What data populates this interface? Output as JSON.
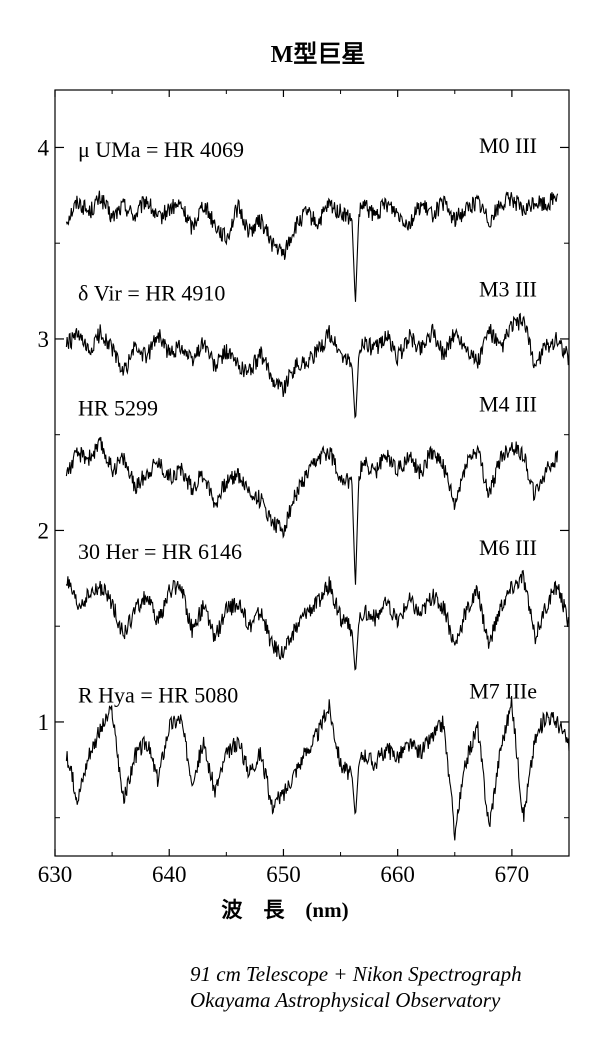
{
  "chart_data": {
    "type": "line",
    "title": "M型巨星",
    "xlabel": "波　長　(nm)",
    "ylabel": "",
    "xlim": [
      630,
      675
    ],
    "ylim": [
      0.3,
      4.3
    ],
    "xticks": [
      630,
      640,
      650,
      660,
      670
    ],
    "yticks": [
      1,
      2,
      3,
      4
    ],
    "grid": false,
    "series": [
      {
        "name": "μ UMa = HR 4069",
        "spectral_type": "M0 III",
        "baseline": 3.7,
        "x": [
          631.0,
          632.0,
          633.0,
          634.0,
          635.0,
          636.0,
          637.0,
          638.0,
          639.0,
          640.0,
          641.0,
          642.0,
          643.0,
          644.0,
          645.0,
          646.0,
          647.0,
          648.0,
          649.0,
          650.0,
          651.0,
          652.0,
          653.0,
          654.0,
          655.0,
          656.0,
          656.3,
          656.6,
          657.0,
          658.0,
          659.0,
          660.0,
          661.0,
          662.0,
          663.0,
          664.0,
          665.0,
          666.0,
          667.0,
          668.0,
          669.0,
          670.0,
          671.0,
          672.0,
          673.0,
          674.0
        ],
        "y": [
          3.62,
          3.72,
          3.66,
          3.74,
          3.63,
          3.7,
          3.64,
          3.73,
          3.62,
          3.68,
          3.7,
          3.58,
          3.71,
          3.6,
          3.52,
          3.69,
          3.56,
          3.62,
          3.5,
          3.44,
          3.58,
          3.66,
          3.6,
          3.7,
          3.66,
          3.62,
          3.18,
          3.65,
          3.7,
          3.64,
          3.71,
          3.66,
          3.6,
          3.7,
          3.65,
          3.71,
          3.62,
          3.68,
          3.72,
          3.62,
          3.7,
          3.74,
          3.66,
          3.72,
          3.7,
          3.76
        ]
      },
      {
        "name": "δ Vir = HR 4910",
        "spectral_type": "M3 III",
        "baseline": 2.95,
        "x": [
          631.0,
          632.0,
          633.0,
          634.0,
          635.0,
          636.0,
          637.0,
          638.0,
          639.0,
          640.0,
          641.0,
          642.0,
          643.0,
          644.0,
          645.0,
          646.0,
          647.0,
          648.0,
          649.0,
          650.0,
          651.0,
          652.0,
          653.0,
          654.0,
          655.0,
          656.0,
          656.3,
          656.6,
          657.0,
          658.0,
          659.0,
          660.0,
          661.0,
          662.0,
          663.0,
          664.0,
          665.0,
          666.0,
          667.0,
          668.0,
          669.0,
          670.0,
          671.0,
          672.0,
          673.0,
          674.0,
          675.0
        ],
        "y": [
          2.97,
          3.02,
          2.92,
          3.04,
          2.95,
          2.82,
          2.96,
          2.9,
          3.03,
          2.92,
          2.97,
          2.88,
          2.99,
          2.85,
          2.94,
          2.86,
          2.83,
          2.92,
          2.8,
          2.74,
          2.86,
          2.88,
          2.93,
          3.03,
          2.92,
          2.86,
          2.56,
          2.92,
          2.99,
          2.94,
          3.02,
          2.9,
          3.01,
          2.95,
          3.04,
          2.92,
          3.03,
          2.96,
          2.87,
          3.05,
          2.94,
          3.07,
          3.1,
          2.86,
          2.96,
          3.0,
          2.9
        ]
      },
      {
        "name": "HR 5299",
        "spectral_type": "M4 III",
        "baseline": 2.35,
        "x": [
          631.0,
          632.0,
          633.0,
          634.0,
          635.0,
          636.0,
          637.0,
          638.0,
          639.0,
          640.0,
          641.0,
          642.0,
          643.0,
          644.0,
          645.0,
          646.0,
          647.0,
          648.0,
          649.0,
          650.0,
          651.0,
          652.0,
          653.0,
          654.0,
          655.0,
          656.0,
          656.3,
          656.6,
          657.0,
          658.0,
          659.0,
          660.0,
          661.0,
          662.0,
          663.0,
          664.0,
          665.0,
          666.0,
          667.0,
          668.0,
          669.0,
          670.0,
          671.0,
          672.0,
          673.0,
          674.0
        ],
        "y": [
          2.3,
          2.4,
          2.38,
          2.45,
          2.32,
          2.38,
          2.22,
          2.3,
          2.36,
          2.28,
          2.32,
          2.22,
          2.3,
          2.14,
          2.25,
          2.3,
          2.2,
          2.16,
          2.05,
          2.0,
          2.18,
          2.28,
          2.37,
          2.42,
          2.28,
          2.24,
          1.7,
          2.28,
          2.36,
          2.3,
          2.4,
          2.32,
          2.38,
          2.3,
          2.42,
          2.34,
          2.12,
          2.36,
          2.42,
          2.18,
          2.38,
          2.44,
          2.4,
          2.18,
          2.32,
          2.38
        ]
      },
      {
        "name": "30 Her = HR 6146",
        "spectral_type": "M6 III",
        "baseline": 1.6,
        "x": [
          631.0,
          632.0,
          633.0,
          634.0,
          635.0,
          636.0,
          637.0,
          638.0,
          639.0,
          640.0,
          641.0,
          642.0,
          643.0,
          644.0,
          645.0,
          646.0,
          647.0,
          648.0,
          649.0,
          650.0,
          651.0,
          652.0,
          653.0,
          654.0,
          655.0,
          656.0,
          656.3,
          656.6,
          657.0,
          658.0,
          659.0,
          660.0,
          661.0,
          662.0,
          663.0,
          664.0,
          665.0,
          666.0,
          667.0,
          668.0,
          669.0,
          670.0,
          671.0,
          672.0,
          673.0,
          674.0,
          675.0
        ],
        "y": [
          1.74,
          1.6,
          1.66,
          1.7,
          1.62,
          1.45,
          1.58,
          1.66,
          1.52,
          1.68,
          1.72,
          1.48,
          1.6,
          1.44,
          1.58,
          1.62,
          1.5,
          1.58,
          1.4,
          1.36,
          1.48,
          1.58,
          1.62,
          1.72,
          1.54,
          1.48,
          1.25,
          1.52,
          1.58,
          1.54,
          1.62,
          1.52,
          1.64,
          1.56,
          1.66,
          1.6,
          1.4,
          1.58,
          1.68,
          1.4,
          1.6,
          1.7,
          1.76,
          1.44,
          1.6,
          1.72,
          1.5
        ]
      },
      {
        "name": "R Hya = HR 5080",
        "spectral_type": "M7 IIIe",
        "baseline": 0.85,
        "x": [
          631.0,
          632.0,
          633.0,
          634.0,
          635.0,
          636.0,
          637.0,
          638.0,
          639.0,
          640.0,
          641.0,
          642.0,
          643.0,
          644.0,
          645.0,
          646.0,
          647.0,
          648.0,
          649.0,
          650.0,
          651.0,
          652.0,
          653.0,
          654.0,
          655.0,
          656.0,
          656.3,
          656.6,
          657.0,
          658.0,
          659.0,
          660.0,
          661.0,
          662.0,
          663.0,
          664.0,
          665.0,
          666.0,
          667.0,
          668.0,
          669.0,
          670.0,
          671.0,
          672.0,
          673.0,
          674.0,
          675.0
        ],
        "y": [
          0.82,
          0.6,
          0.84,
          0.96,
          1.06,
          0.58,
          0.82,
          0.9,
          0.7,
          0.98,
          1.02,
          0.7,
          0.88,
          0.64,
          0.82,
          0.9,
          0.74,
          0.84,
          0.56,
          0.62,
          0.74,
          0.84,
          0.94,
          1.08,
          0.78,
          0.72,
          0.5,
          0.78,
          0.84,
          0.78,
          0.86,
          0.82,
          0.88,
          0.84,
          0.92,
          1.0,
          0.42,
          0.8,
          0.98,
          0.45,
          0.86,
          1.1,
          0.5,
          0.9,
          1.04,
          1.0,
          0.88
        ]
      }
    ]
  },
  "credit": {
    "line1": "91 cm Telescope + Nikon Spectrograph",
    "line2": "Okayama Astrophysical Observatory"
  }
}
